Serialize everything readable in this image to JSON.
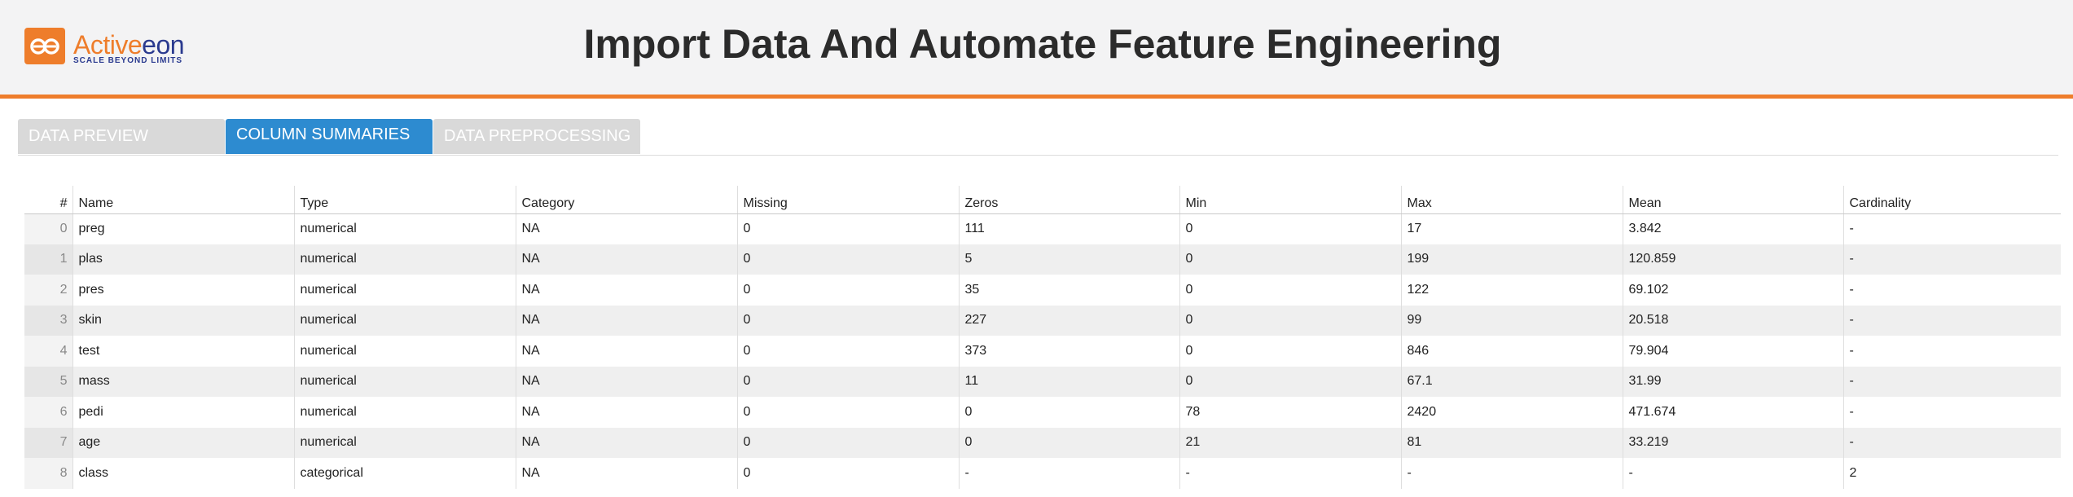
{
  "header": {
    "title": "Import Data And Automate Feature Engineering",
    "logo": {
      "name_part1": "Active",
      "name_part2": "eon",
      "tagline": "SCALE BEYOND LIMITS",
      "icon": "activeeon-logo-icon"
    }
  },
  "colors": {
    "accent": "#ee7d2b",
    "active_tab": "#2d8bd0",
    "inactive_tab": "#d9d9d9",
    "brand_blue": "#2a3a8f"
  },
  "tabs": [
    {
      "label": "DATA PREVIEW",
      "active": false
    },
    {
      "label": "COLUMN SUMMARIES",
      "active": true
    },
    {
      "label": "DATA PREPROCESSING",
      "active": false
    }
  ],
  "table": {
    "columns": [
      "#",
      "Name",
      "Type",
      "Category",
      "Missing",
      "Zeros",
      "Min",
      "Max",
      "Mean",
      "Cardinality"
    ],
    "rows": [
      [
        "0",
        "preg",
        "numerical",
        "NA",
        "0",
        "111",
        "0",
        "17",
        "3.842",
        "-"
      ],
      [
        "1",
        "plas",
        "numerical",
        "NA",
        "0",
        "5",
        "0",
        "199",
        "120.859",
        "-"
      ],
      [
        "2",
        "pres",
        "numerical",
        "NA",
        "0",
        "35",
        "0",
        "122",
        "69.102",
        "-"
      ],
      [
        "3",
        "skin",
        "numerical",
        "NA",
        "0",
        "227",
        "0",
        "99",
        "20.518",
        "-"
      ],
      [
        "4",
        "test",
        "numerical",
        "NA",
        "0",
        "373",
        "0",
        "846",
        "79.904",
        "-"
      ],
      [
        "5",
        "mass",
        "numerical",
        "NA",
        "0",
        "11",
        "0",
        "67.1",
        "31.99",
        "-"
      ],
      [
        "6",
        "pedi",
        "numerical",
        "NA",
        "0",
        "0",
        "78",
        "2420",
        "471.674",
        "-"
      ],
      [
        "7",
        "age",
        "numerical",
        "NA",
        "0",
        "0",
        "21",
        "81",
        "33.219",
        "-"
      ],
      [
        "8",
        "class",
        "categorical",
        "NA",
        "0",
        "-",
        "-",
        "-",
        "-",
        "2"
      ]
    ]
  }
}
